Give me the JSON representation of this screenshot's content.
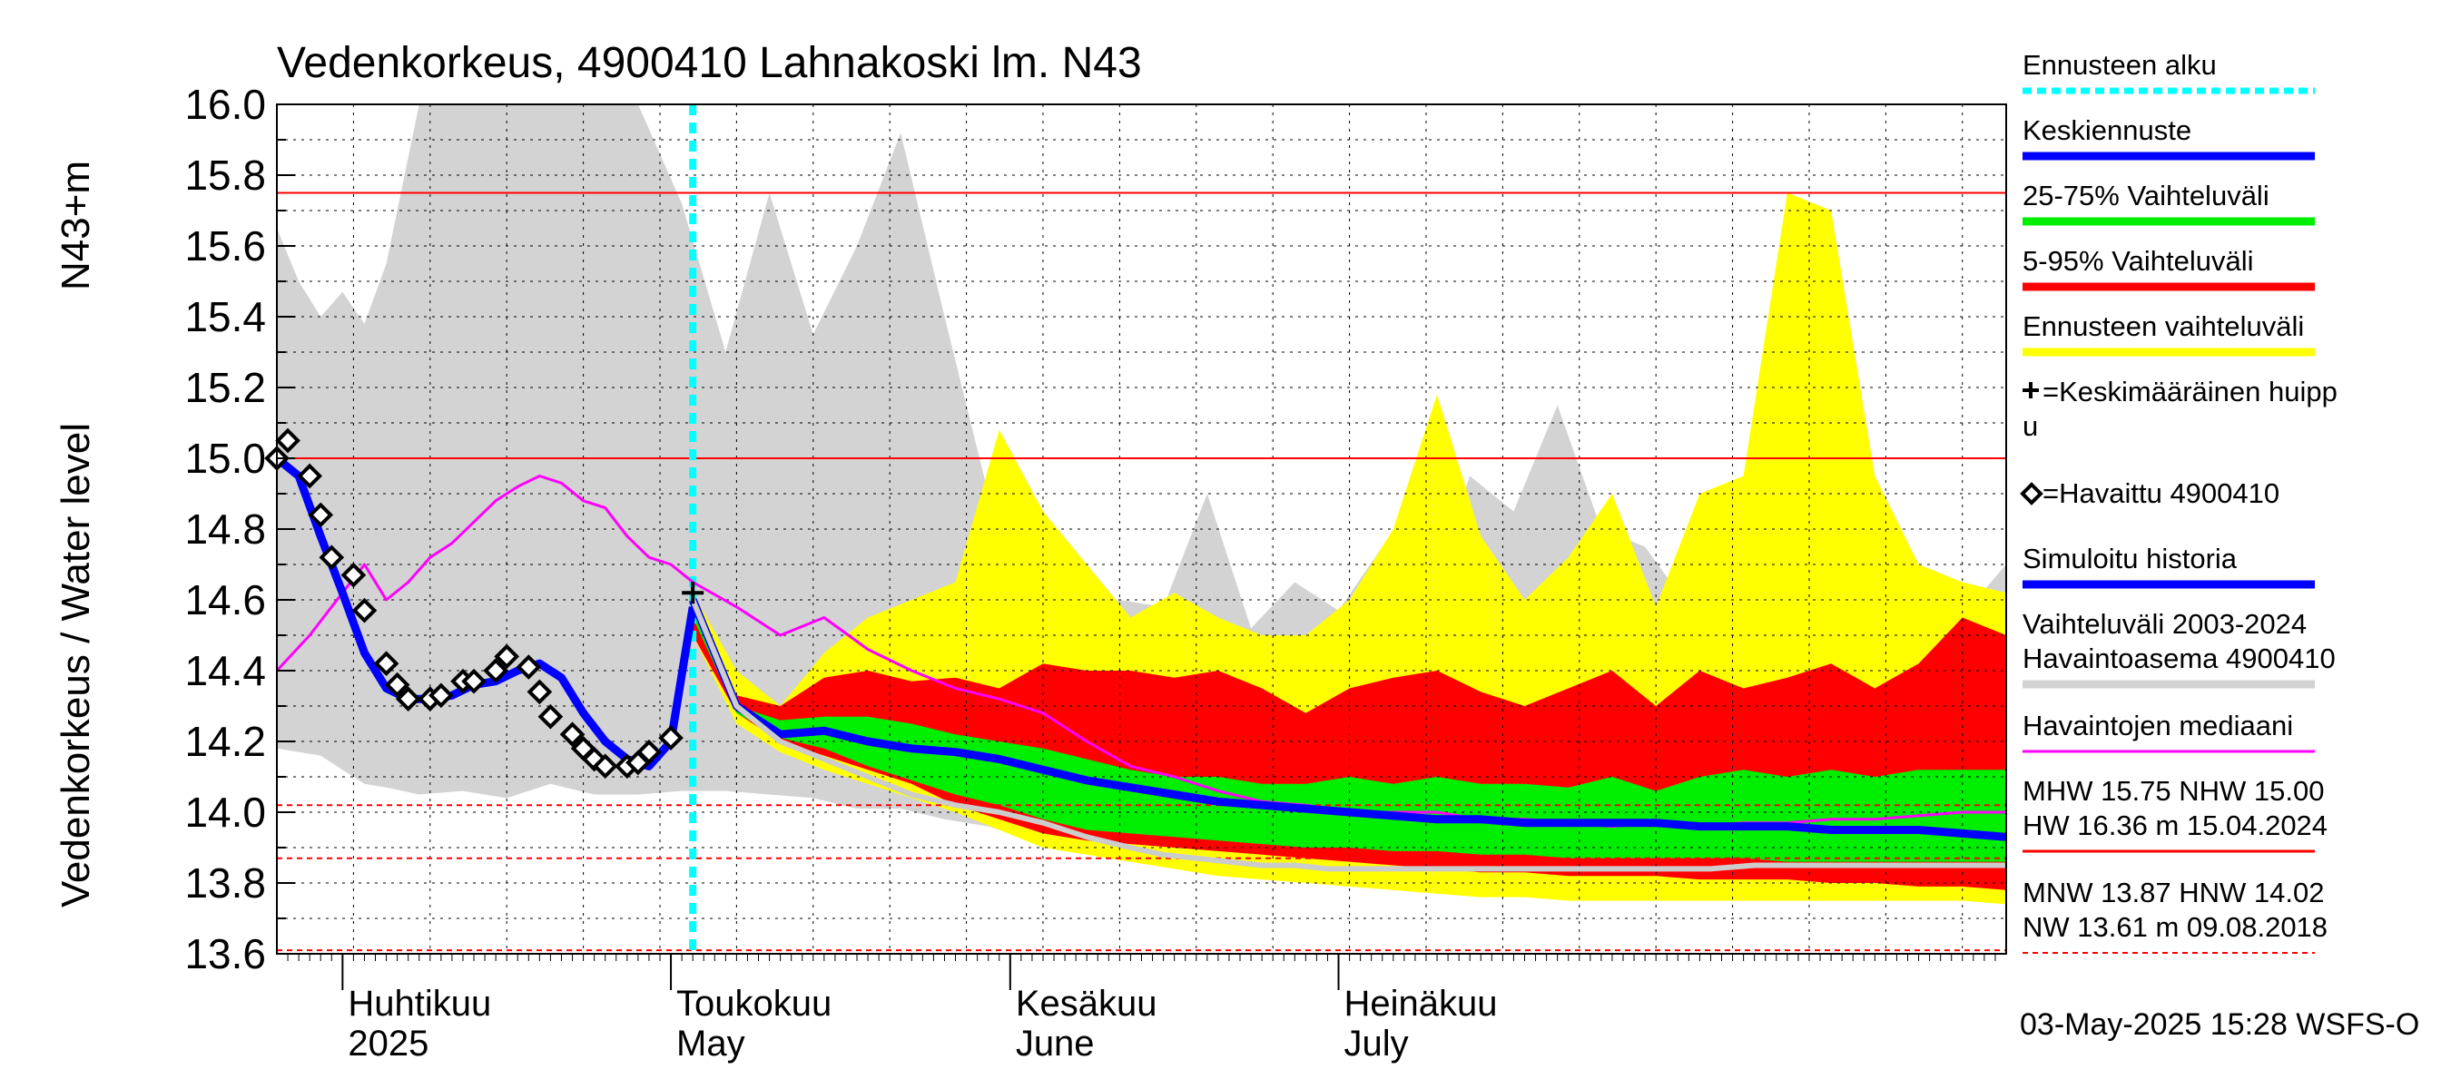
{
  "chart_data": {
    "type": "area",
    "title": "Vedenkorkeus, 4900410 Lahnakoski lm. N43",
    "ylabel_primary": "Vedenkorkeus / Water level",
    "ylabel_unit": "N43+m",
    "ylim": [
      13.6,
      16.0
    ],
    "yticks": [
      "13.6",
      "13.8",
      "14.0",
      "14.2",
      "14.4",
      "14.6",
      "14.8",
      "15.0",
      "15.2",
      "15.4",
      "15.6",
      "15.8",
      "16.0"
    ],
    "x_start": "2025-03-26",
    "x_end": "2025-08-31",
    "forecast_start": "2025-05-03",
    "month_labels": [
      {
        "date": "2025-04-01",
        "fi": "Huhtikuu",
        "en": "2025"
      },
      {
        "date": "2025-05-01",
        "fi": "Toukokuu",
        "en": "May"
      },
      {
        "date": "2025-06-01",
        "fi": "Kesäkuu",
        "en": "June"
      },
      {
        "date": "2025-07-01",
        "fi": "Heinäkuu",
        "en": "July"
      }
    ],
    "reference_lines": [
      {
        "value": 15.75,
        "style": "solid",
        "color": "#ff0000"
      },
      {
        "value": 15.0,
        "style": "solid",
        "color": "#ff0000"
      },
      {
        "value": 14.02,
        "style": "dashed",
        "color": "#ff0000"
      },
      {
        "value": 13.87,
        "style": "dashed",
        "color": "#ff0000"
      },
      {
        "value": 13.61,
        "style": "dashed",
        "color": "#ff0000"
      }
    ],
    "series": [
      {
        "name": "Vaihteluväli 2003-2024 Havaintoasema 4900410",
        "kind": "band",
        "color": "#d3d3d3",
        "x": [
          "2025-03-26",
          "2025-03-28",
          "2025-03-30",
          "2025-04-01",
          "2025-04-03",
          "2025-04-05",
          "2025-04-08",
          "2025-04-12",
          "2025-04-16",
          "2025-04-20",
          "2025-04-24",
          "2025-04-28",
          "2025-05-02",
          "2025-05-06",
          "2025-05-10",
          "2025-05-14",
          "2025-05-18",
          "2025-05-22",
          "2025-05-26",
          "2025-05-30",
          "2025-06-03",
          "2025-06-07",
          "2025-06-11",
          "2025-06-15",
          "2025-06-19",
          "2025-06-23",
          "2025-06-27",
          "2025-07-01",
          "2025-07-05",
          "2025-07-09",
          "2025-07-13",
          "2025-07-17",
          "2025-07-21",
          "2025-07-25",
          "2025-07-29",
          "2025-08-02",
          "2025-08-06",
          "2025-08-10",
          "2025-08-14",
          "2025-08-18",
          "2025-08-22",
          "2025-08-26",
          "2025-08-31"
        ],
        "low": [
          14.18,
          14.17,
          14.16,
          14.12,
          14.08,
          14.07,
          14.05,
          14.06,
          14.04,
          14.08,
          14.05,
          14.05,
          14.06,
          14.06,
          14.05,
          14.04,
          14.01,
          14.01,
          13.98,
          13.96,
          13.92,
          13.91,
          13.9,
          13.89,
          13.88,
          13.87,
          13.87,
          13.86,
          13.86,
          13.86,
          13.85,
          13.85,
          13.84,
          13.84,
          13.84,
          13.84,
          13.84,
          13.84,
          13.84,
          13.84,
          13.84,
          13.84,
          13.84
        ],
        "high": [
          15.65,
          15.5,
          15.4,
          15.47,
          15.38,
          15.55,
          16.0,
          16.0,
          16.0,
          16.0,
          16.0,
          16.0,
          15.72,
          15.3,
          15.75,
          15.35,
          15.6,
          15.92,
          15.4,
          14.9,
          14.75,
          14.55,
          14.6,
          14.58,
          14.9,
          14.52,
          14.65,
          14.57,
          14.75,
          14.6,
          14.95,
          14.85,
          15.15,
          14.8,
          14.75,
          14.58,
          14.55,
          14.52,
          14.5,
          14.48,
          14.5,
          14.52,
          14.7
        ]
      },
      {
        "name": "Ennusteen vaihteluväli",
        "kind": "band",
        "color": "#ffff00",
        "x": [
          "2025-05-03",
          "2025-05-07",
          "2025-05-11",
          "2025-05-15",
          "2025-05-19",
          "2025-05-23",
          "2025-05-27",
          "2025-05-31",
          "2025-06-04",
          "2025-06-08",
          "2025-06-12",
          "2025-06-16",
          "2025-06-20",
          "2025-06-24",
          "2025-06-28",
          "2025-07-02",
          "2025-07-06",
          "2025-07-10",
          "2025-07-14",
          "2025-07-18",
          "2025-07-22",
          "2025-07-26",
          "2025-07-30",
          "2025-08-03",
          "2025-08-07",
          "2025-08-11",
          "2025-08-15",
          "2025-08-19",
          "2025-08-23",
          "2025-08-27",
          "2025-08-31"
        ],
        "low": [
          14.5,
          14.25,
          14.17,
          14.12,
          14.08,
          14.04,
          14.0,
          13.95,
          13.9,
          13.88,
          13.86,
          13.84,
          13.82,
          13.81,
          13.8,
          13.79,
          13.78,
          13.77,
          13.76,
          13.76,
          13.75,
          13.75,
          13.75,
          13.75,
          13.75,
          13.75,
          13.75,
          13.75,
          13.75,
          13.75,
          13.74
        ],
        "high": [
          14.62,
          14.4,
          14.3,
          14.45,
          14.55,
          14.6,
          14.65,
          15.08,
          14.85,
          14.7,
          14.55,
          14.62,
          14.55,
          14.5,
          14.5,
          14.6,
          14.8,
          15.18,
          14.78,
          14.6,
          14.72,
          14.9,
          14.58,
          14.9,
          14.95,
          15.75,
          15.7,
          14.95,
          14.7,
          14.65,
          14.62
        ]
      },
      {
        "name": "5-95% Vaihteluväli",
        "kind": "band",
        "color": "#ff0000",
        "x": [
          "2025-05-03",
          "2025-05-07",
          "2025-05-11",
          "2025-05-15",
          "2025-05-19",
          "2025-05-23",
          "2025-05-27",
          "2025-05-31",
          "2025-06-04",
          "2025-06-08",
          "2025-06-12",
          "2025-06-16",
          "2025-06-20",
          "2025-06-24",
          "2025-06-28",
          "2025-07-02",
          "2025-07-06",
          "2025-07-10",
          "2025-07-14",
          "2025-07-18",
          "2025-07-22",
          "2025-07-26",
          "2025-07-30",
          "2025-08-03",
          "2025-08-07",
          "2025-08-11",
          "2025-08-15",
          "2025-08-19",
          "2025-08-23",
          "2025-08-27",
          "2025-08-31"
        ],
        "low": [
          14.5,
          14.28,
          14.2,
          14.16,
          14.12,
          14.08,
          14.02,
          13.98,
          13.94,
          13.92,
          13.91,
          13.9,
          13.89,
          13.88,
          13.87,
          13.86,
          13.85,
          13.84,
          13.83,
          13.83,
          13.82,
          13.82,
          13.82,
          13.81,
          13.81,
          13.81,
          13.8,
          13.8,
          13.79,
          13.79,
          13.78
        ],
        "high": [
          14.6,
          14.33,
          14.3,
          14.38,
          14.4,
          14.37,
          14.38,
          14.35,
          14.42,
          14.4,
          14.4,
          14.38,
          14.4,
          14.35,
          14.28,
          14.35,
          14.38,
          14.4,
          14.34,
          14.3,
          14.35,
          14.4,
          14.3,
          14.4,
          14.35,
          14.38,
          14.42,
          14.35,
          14.42,
          14.55,
          14.5
        ]
      },
      {
        "name": "25-75% Vaihteluväli",
        "kind": "band",
        "color": "#00ee00",
        "x": [
          "2025-05-03",
          "2025-05-07",
          "2025-05-11",
          "2025-05-15",
          "2025-05-19",
          "2025-05-23",
          "2025-05-27",
          "2025-05-31",
          "2025-06-04",
          "2025-06-08",
          "2025-06-12",
          "2025-06-16",
          "2025-06-20",
          "2025-06-24",
          "2025-06-28",
          "2025-07-02",
          "2025-07-06",
          "2025-07-10",
          "2025-07-14",
          "2025-07-18",
          "2025-07-22",
          "2025-07-26",
          "2025-07-30",
          "2025-08-03",
          "2025-08-07",
          "2025-08-11",
          "2025-08-15",
          "2025-08-19",
          "2025-08-23",
          "2025-08-27",
          "2025-08-31"
        ],
        "low": [
          14.55,
          14.28,
          14.21,
          14.18,
          14.13,
          14.09,
          14.05,
          14.02,
          13.98,
          13.95,
          13.94,
          13.93,
          13.92,
          13.91,
          13.9,
          13.9,
          13.89,
          13.89,
          13.88,
          13.88,
          13.87,
          13.87,
          13.87,
          13.87,
          13.87,
          13.86,
          13.86,
          13.86,
          13.86,
          13.86,
          13.86
        ],
        "high": [
          14.58,
          14.3,
          14.26,
          14.27,
          14.27,
          14.25,
          14.22,
          14.2,
          14.18,
          14.15,
          14.12,
          14.1,
          14.1,
          14.08,
          14.08,
          14.1,
          14.08,
          14.1,
          14.08,
          14.08,
          14.07,
          14.1,
          14.06,
          14.1,
          14.12,
          14.1,
          14.12,
          14.1,
          14.12,
          14.12,
          14.12
        ]
      },
      {
        "name": "Havaintojen mediaani",
        "kind": "line",
        "color": "#ff00ff",
        "x": [
          "2025-03-26",
          "2025-03-29",
          "2025-04-01",
          "2025-04-03",
          "2025-04-05",
          "2025-04-07",
          "2025-04-09",
          "2025-04-11",
          "2025-04-13",
          "2025-04-15",
          "2025-04-17",
          "2025-04-19",
          "2025-04-21",
          "2025-04-23",
          "2025-04-25",
          "2025-04-27",
          "2025-04-29",
          "2025-05-01",
          "2025-05-03",
          "2025-05-07",
          "2025-05-11",
          "2025-05-15",
          "2025-05-19",
          "2025-05-23",
          "2025-05-27",
          "2025-05-31",
          "2025-06-04",
          "2025-06-08",
          "2025-06-12",
          "2025-06-16",
          "2025-06-20",
          "2025-06-24",
          "2025-06-28",
          "2025-07-02",
          "2025-07-06",
          "2025-07-10",
          "2025-07-14",
          "2025-07-18",
          "2025-07-22",
          "2025-07-26",
          "2025-07-30",
          "2025-08-03",
          "2025-08-07",
          "2025-08-11",
          "2025-08-15",
          "2025-08-19",
          "2025-08-23",
          "2025-08-27",
          "2025-08-31"
        ],
        "y": [
          14.4,
          14.5,
          14.62,
          14.7,
          14.6,
          14.65,
          14.72,
          14.76,
          14.82,
          14.88,
          14.92,
          14.95,
          14.93,
          14.88,
          14.86,
          14.78,
          14.72,
          14.7,
          14.65,
          14.58,
          14.5,
          14.55,
          14.46,
          14.4,
          14.35,
          14.32,
          14.28,
          14.2,
          14.13,
          14.1,
          14.06,
          14.03,
          14.02,
          14.0,
          14.0,
          14.0,
          13.98,
          13.98,
          13.97,
          13.96,
          13.97,
          13.96,
          13.97,
          13.97,
          13.98,
          13.98,
          13.99,
          14.0,
          14.0
        ]
      },
      {
        "name": "Simuloitu historia",
        "kind": "line",
        "color": "#0000ff",
        "x": [
          "2025-03-26",
          "2025-03-28",
          "2025-03-30",
          "2025-04-01",
          "2025-04-03",
          "2025-04-05",
          "2025-04-07",
          "2025-04-09",
          "2025-04-11",
          "2025-04-13",
          "2025-04-15",
          "2025-04-17",
          "2025-04-19",
          "2025-04-21",
          "2025-04-23",
          "2025-04-25",
          "2025-04-27",
          "2025-04-29",
          "2025-05-01",
          "2025-05-03"
        ],
        "y": [
          15.0,
          14.95,
          14.78,
          14.62,
          14.45,
          14.35,
          14.32,
          14.32,
          14.33,
          14.36,
          14.37,
          14.4,
          14.42,
          14.38,
          14.28,
          14.2,
          14.15,
          14.13,
          14.2,
          14.58
        ]
      },
      {
        "name": "Keskiennuste",
        "kind": "line",
        "color": "#0000ff",
        "x": [
          "2025-05-03",
          "2025-05-07",
          "2025-05-11",
          "2025-05-15",
          "2025-05-19",
          "2025-05-23",
          "2025-05-27",
          "2025-05-31",
          "2025-06-04",
          "2025-06-08",
          "2025-06-12",
          "2025-06-16",
          "2025-06-20",
          "2025-06-24",
          "2025-06-28",
          "2025-07-02",
          "2025-07-06",
          "2025-07-10",
          "2025-07-14",
          "2025-07-18",
          "2025-07-22",
          "2025-07-26",
          "2025-07-30",
          "2025-08-03",
          "2025-08-07",
          "2025-08-11",
          "2025-08-15",
          "2025-08-19",
          "2025-08-23",
          "2025-08-27",
          "2025-08-31"
        ],
        "y": [
          14.6,
          14.3,
          14.22,
          14.23,
          14.2,
          14.18,
          14.17,
          14.15,
          14.12,
          14.09,
          14.07,
          14.05,
          14.03,
          14.02,
          14.01,
          14.0,
          13.99,
          13.98,
          13.98,
          13.97,
          13.97,
          13.97,
          13.97,
          13.96,
          13.96,
          13.96,
          13.95,
          13.95,
          13.95,
          13.94,
          13.93
        ]
      },
      {
        "name": "",
        "kind": "line",
        "color": "#cccccc",
        "x": [
          "2025-05-03",
          "2025-05-07",
          "2025-05-11",
          "2025-05-15",
          "2025-05-19",
          "2025-05-23",
          "2025-05-27",
          "2025-05-31",
          "2025-06-04",
          "2025-06-08",
          "2025-06-12",
          "2025-06-15",
          "2025-06-18",
          "2025-06-21",
          "2025-06-24",
          "2025-06-27",
          "2025-06-30",
          "2025-07-03",
          "2025-07-07",
          "2025-07-11",
          "2025-07-15",
          "2025-07-19",
          "2025-07-23",
          "2025-07-27",
          "2025-07-31",
          "2025-08-04",
          "2025-08-08",
          "2025-08-11",
          "2025-08-14",
          "2025-08-18",
          "2025-08-22",
          "2025-08-26",
          "2025-08-31"
        ],
        "y": [
          14.6,
          14.3,
          14.2,
          14.15,
          14.1,
          14.05,
          14.02,
          14.0,
          13.97,
          13.93,
          13.9,
          13.88,
          13.87,
          13.86,
          13.85,
          13.85,
          13.84,
          13.84,
          13.84,
          13.84,
          13.84,
          13.84,
          13.84,
          13.84,
          13.84,
          13.84,
          13.85,
          13.85,
          13.85,
          13.85,
          13.85,
          13.85,
          13.85
        ]
      },
      {
        "name": "Havaittu 4900410",
        "kind": "markers",
        "color": "#000000",
        "x": [
          "2025-03-26",
          "2025-03-27",
          "2025-03-29",
          "2025-03-30",
          "2025-03-31",
          "2025-04-02",
          "2025-04-03",
          "2025-04-05",
          "2025-04-06",
          "2025-04-07",
          "2025-04-09",
          "2025-04-10",
          "2025-04-12",
          "2025-04-13",
          "2025-04-15",
          "2025-04-16",
          "2025-04-18",
          "2025-04-19",
          "2025-04-20",
          "2025-04-22",
          "2025-04-23",
          "2025-04-24",
          "2025-04-25",
          "2025-04-27",
          "2025-04-28",
          "2025-04-29",
          "2025-05-01"
        ],
        "y": [
          15.0,
          15.05,
          14.95,
          14.84,
          14.72,
          14.67,
          14.57,
          14.42,
          14.36,
          14.32,
          14.32,
          14.33,
          14.37,
          14.37,
          14.4,
          14.44,
          14.41,
          14.34,
          14.27,
          14.22,
          14.18,
          14.15,
          14.13,
          14.13,
          14.14,
          14.17,
          14.21
        ]
      }
    ],
    "peak_marker": {
      "x": "2025-05-03",
      "y": 14.62
    },
    "legend": [
      {
        "label": "Ennusteen alku",
        "color": "#00ffff",
        "style": "dotted"
      },
      {
        "label": "Keskiennuste",
        "color": "#0000ff",
        "style": "line"
      },
      {
        "label": "25-75% Vaihteluväli",
        "color": "#00ee00",
        "style": "line"
      },
      {
        "label": "5-95% Vaihteluväli",
        "color": "#ff0000",
        "style": "line"
      },
      {
        "label": "Ennusteen vaihteluväli",
        "color": "#ffff00",
        "style": "line"
      },
      {
        "label": "=Keskimääräinen huipp",
        "label2": "u",
        "color": "#000000",
        "style": "plus"
      },
      {
        "label": "=Havaittu 4900410",
        "color": "#000000",
        "style": "diamond"
      },
      {
        "label": "Simuloitu historia",
        "color": "#0000ff",
        "style": "line"
      },
      {
        "label": "Vaihteluväli 2003-2024",
        "label2": " Havaintoasema 4900410",
        "color": "#d3d3d3",
        "style": "line"
      },
      {
        "label": "Havaintojen mediaani",
        "color": "#ff00ff",
        "style": "thin"
      },
      {
        "label": "MHW  15.75 NHW  15.00",
        "label2": "HW  16.36 m 15.04.2024",
        "color": "#ff0000",
        "style": "thin"
      },
      {
        "label": "MNW  13.87 HNW  14.02",
        "label2": "NW  13.61 m 09.08.2018",
        "color": "#ff0000",
        "style": "dashed"
      }
    ],
    "legend_placement": "right",
    "grid": true,
    "timestamp": "03-May-2025 15:28 WSFS-O"
  }
}
